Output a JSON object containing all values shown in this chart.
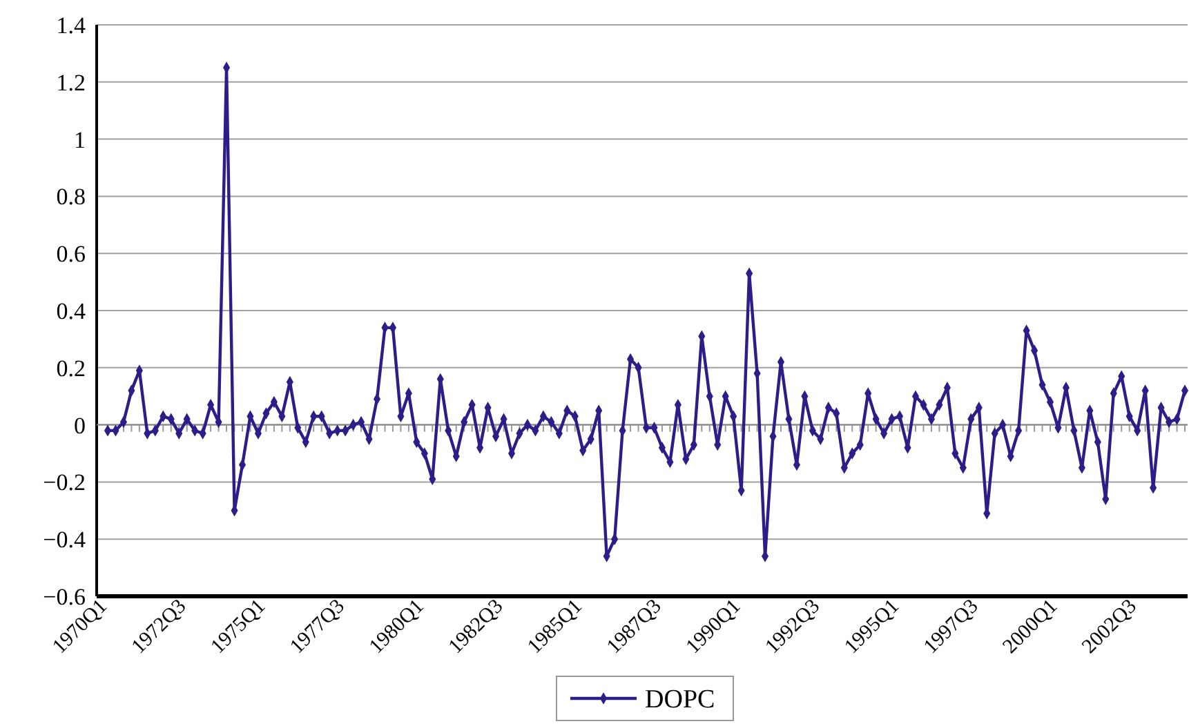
{
  "chart_data": {
    "type": "line",
    "categories": [
      "1970Q1",
      null,
      null,
      null,
      null,
      null,
      null,
      null,
      null,
      null,
      "1972Q3",
      null,
      null,
      null,
      null,
      null,
      null,
      null,
      null,
      null,
      "1975Q1",
      null,
      null,
      null,
      null,
      null,
      null,
      null,
      null,
      null,
      "1977Q3",
      null,
      null,
      null,
      null,
      null,
      null,
      null,
      null,
      null,
      "1980Q1",
      null,
      null,
      null,
      null,
      null,
      null,
      null,
      null,
      null,
      "1982Q3",
      null,
      null,
      null,
      null,
      null,
      null,
      null,
      null,
      null,
      "1985Q1",
      null,
      null,
      null,
      null,
      null,
      null,
      null,
      null,
      null,
      "1987Q3",
      null,
      null,
      null,
      null,
      null,
      null,
      null,
      null,
      null,
      "1990Q1",
      null,
      null,
      null,
      null,
      null,
      null,
      null,
      null,
      null,
      "1992Q3",
      null,
      null,
      null,
      null,
      null,
      null,
      null,
      null,
      null,
      "1995Q1",
      null,
      null,
      null,
      null,
      null,
      null,
      null,
      null,
      null,
      "1997Q3",
      null,
      null,
      null,
      null,
      null,
      null,
      null,
      null,
      null,
      "2000Q1",
      null,
      null,
      null,
      null,
      null,
      null,
      null,
      null,
      null,
      "2002Q3",
      null,
      null,
      null,
      null,
      null,
      null
    ],
    "series": [
      {
        "name": "DOPC",
        "color": "#2b1e88",
        "values": [
          -0.02,
          -0.02,
          0.01,
          0.12,
          0.19,
          -0.03,
          -0.02,
          0.03,
          0.02,
          -0.03,
          0.02,
          -0.02,
          -0.03,
          0.07,
          0.01,
          1.25,
          -0.3,
          -0.14,
          0.03,
          -0.03,
          0.04,
          0.08,
          0.03,
          0.15,
          -0.01,
          -0.06,
          0.03,
          0.03,
          -0.03,
          -0.02,
          -0.02,
          0,
          0.01,
          -0.05,
          0.09,
          0.34,
          0.34,
          0.03,
          0.11,
          -0.06,
          -0.1,
          -0.19,
          0.16,
          -0.02,
          -0.11,
          0.01,
          0.07,
          -0.08,
          0.06,
          -0.04,
          0.02,
          -0.1,
          -0.03,
          0,
          -0.02,
          0.03,
          0.01,
          -0.03,
          0.05,
          0.03,
          -0.09,
          -0.05,
          0.05,
          -0.46,
          -0.4,
          -0.02,
          0.23,
          0.2,
          -0.01,
          -0.01,
          -0.08,
          -0.13,
          0.07,
          -0.12,
          -0.07,
          0.31,
          0.1,
          -0.07,
          0.1,
          0.03,
          -0.23,
          0.53,
          0.18,
          -0.46,
          -0.04,
          0.22,
          0.02,
          -0.14,
          0.1,
          -0.02,
          -0.05,
          0.06,
          0.04,
          -0.15,
          -0.1,
          -0.07,
          0.11,
          0.02,
          -0.03,
          0.02,
          0.03,
          -0.08,
          0.1,
          0.07,
          0.02,
          0.07,
          0.13,
          -0.1,
          -0.15,
          0.02,
          0.06,
          -0.31,
          -0.03,
          0,
          -0.11,
          -0.02,
          0.33,
          0.26,
          0.14,
          0.08,
          -0.01,
          0.13,
          -0.02,
          -0.15,
          0.05,
          -0.06,
          -0.26,
          0.11,
          0.17,
          0.03,
          -0.02,
          0.12,
          -0.22,
          0.06,
          0.01,
          0.02,
          0.12
        ]
      }
    ],
    "ylim": [
      -0.6,
      1.4
    ],
    "yticks": [
      {
        "value": -0.6,
        "label": "−0.6"
      },
      {
        "value": -0.4,
        "label": "−0.4"
      },
      {
        "value": -0.2,
        "label": "−0.2"
      },
      0,
      0.2,
      0.4,
      0.6,
      0.8,
      1,
      1.2,
      1.4
    ],
    "grid": "y",
    "legend": "bottom",
    "marker": "diamond",
    "line_style": "solid"
  }
}
